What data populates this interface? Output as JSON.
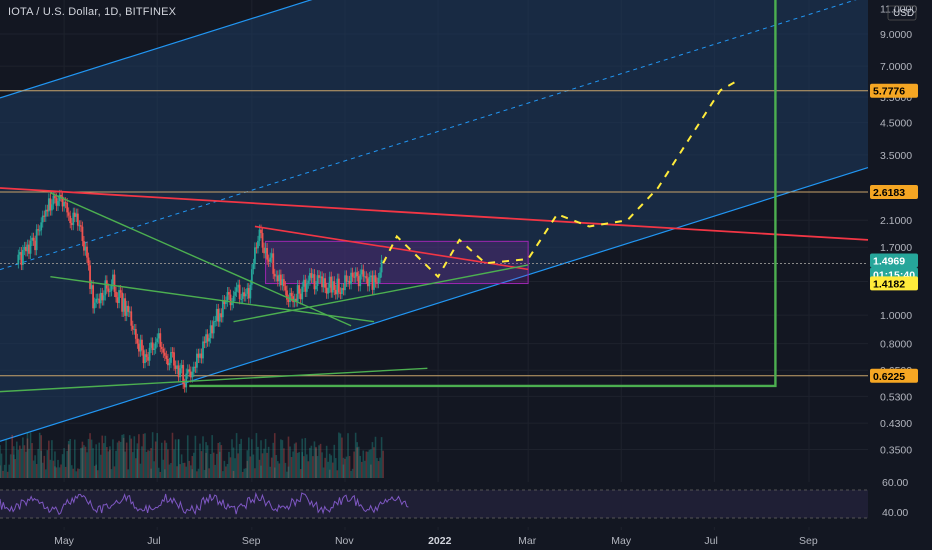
{
  "header": {
    "title": "IOTA / U.S. Dollar, 1D, BITFINEX"
  },
  "currency_label": "USD",
  "colors": {
    "background": "#131722",
    "axis_text": "#b2b5be",
    "grid": "#1e222d",
    "channel_line": "#2196f3",
    "channel_fill": "#1e3a5f",
    "resistance": "#f23645",
    "support": "#4caf50",
    "projection": "#ffeb3b",
    "box": "#9c27b0",
    "hline": "#c8a36a",
    "candle_up": "#26a69a",
    "candle_down": "#ef5350",
    "rsi": "#7e57c2"
  },
  "chart_data": {
    "type": "candlestick",
    "title": "IOTA / U.S. Dollar, 1D, BITFINEX",
    "y_scale": "log",
    "ylim": [
      0.28,
      11.2
    ],
    "y_ticks": [
      "11.0000",
      "9.0000",
      "7.0000",
      "5.5000",
      "4.5000",
      "3.5000",
      "2.1000",
      "1.7000",
      "1.3000",
      "1.0000",
      "0.8000",
      "0.6500",
      "0.5300",
      "0.4300",
      "0.3500"
    ],
    "x_ticks": [
      "May",
      "Jul",
      "Sep",
      "Nov",
      "2022",
      "Mar",
      "May",
      "Jul",
      "Sep"
    ],
    "price_labels": [
      {
        "value": "5.7776",
        "kind": "level"
      },
      {
        "value": "2.6183",
        "kind": "level"
      },
      {
        "value": "1.4969",
        "kind": "last"
      },
      {
        "value": "01:15:40",
        "kind": "countdown"
      },
      {
        "value": "1.4182",
        "kind": "marker"
      },
      {
        "value": "0.6225",
        "kind": "level"
      }
    ],
    "horizontal_levels": [
      5.7776,
      2.6183,
      1.4969,
      0.6225
    ],
    "candles": [
      {
        "date": "2021-04-01",
        "close": 1.5
      },
      {
        "date": "2021-04-15",
        "close": 1.9
      },
      {
        "date": "2021-04-24",
        "close": 2.6
      },
      {
        "date": "2021-05-01",
        "close": 2.3
      },
      {
        "date": "2021-05-12",
        "close": 2.0
      },
      {
        "date": "2021-05-20",
        "close": 1.1
      },
      {
        "date": "2021-06-01",
        "close": 1.3
      },
      {
        "date": "2021-06-15",
        "close": 0.95
      },
      {
        "date": "2021-06-22",
        "close": 0.7
      },
      {
        "date": "2021-07-01",
        "close": 0.82
      },
      {
        "date": "2021-07-20",
        "close": 0.6
      },
      {
        "date": "2021-08-01",
        "close": 0.8
      },
      {
        "date": "2021-08-15",
        "close": 1.15
      },
      {
        "date": "2021-08-30",
        "close": 1.2
      },
      {
        "date": "2021-09-05",
        "close": 1.9
      },
      {
        "date": "2021-09-15",
        "close": 1.5
      },
      {
        "date": "2021-09-25",
        "close": 1.15
      },
      {
        "date": "2021-10-10",
        "close": 1.3
      },
      {
        "date": "2021-10-25",
        "close": 1.25
      },
      {
        "date": "2021-11-10",
        "close": 1.35
      },
      {
        "date": "2021-11-20",
        "close": 1.3
      },
      {
        "date": "2021-11-26",
        "close": 1.4969
      }
    ],
    "projection_path": [
      {
        "date": "2021-11-26",
        "value": 1.5
      },
      {
        "date": "2021-12-05",
        "value": 1.85
      },
      {
        "date": "2022-01-01",
        "value": 1.35
      },
      {
        "date": "2022-01-15",
        "value": 1.8
      },
      {
        "date": "2022-02-01",
        "value": 1.5
      },
      {
        "date": "2022-03-01",
        "value": 1.55
      },
      {
        "date": "2022-03-20",
        "value": 2.2
      },
      {
        "date": "2022-04-10",
        "value": 2.0
      },
      {
        "date": "2022-05-05",
        "value": 2.1
      },
      {
        "date": "2022-05-25",
        "value": 2.7
      },
      {
        "date": "2022-06-15",
        "value": 4.0
      },
      {
        "date": "2022-07-05",
        "value": 5.8
      },
      {
        "date": "2022-07-15",
        "value": 6.2
      }
    ],
    "rsi": {
      "ticks": [
        "60.00",
        "40.00"
      ],
      "levels": [
        70,
        30
      ],
      "range": [
        25,
        75
      ]
    }
  }
}
